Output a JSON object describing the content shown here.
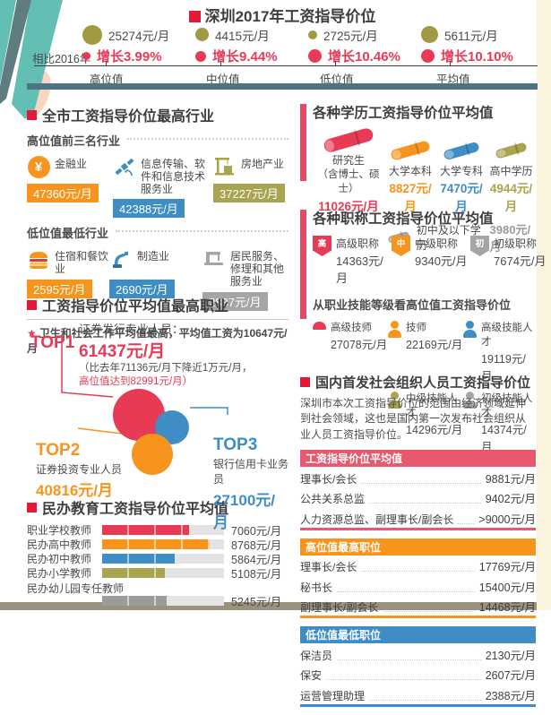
{
  "palette": {
    "bullet_red": "#e31937",
    "crimson": "#e73b55",
    "orange": "#f7941e",
    "blue": "#3e8dc5",
    "olive": "#a8a44f",
    "olive_circle": "#a29a43",
    "gray": "#a5a5a5",
    "dark_text": "#4b4b4d",
    "slate_rule": "#4d7480",
    "teal_corner": "#63bfb4",
    "slate_corner": "#5f7c80",
    "peach_corner": "#f7d7c2",
    "cream_strip": "#faf4df",
    "bottom_bar": "#99927f",
    "track_gray": "#e4e4e4",
    "section_bar_red": "#e84a63"
  },
  "header": {
    "title": "深圳2017年工资指导价位",
    "compare_label": "相比2016年",
    "circle_color": "#a29a43",
    "stats": [
      {
        "value": "25274元/月",
        "growth": "增长3.99%",
        "label": "高位值"
      },
      {
        "value": "4415元/月",
        "growth": "增长9.44%",
        "label": "中位值"
      },
      {
        "value": "2725元/月",
        "growth": "增长10.46%",
        "label": "低位值"
      },
      {
        "value": "5611元/月",
        "growth": "增长10.10%",
        "label": "平均值"
      }
    ]
  },
  "industry": {
    "title": "全市工资指导价位最高行业",
    "high_label": "高位值前三名行业",
    "high_items": [
      {
        "name": "金融业",
        "value": "47360元/月",
        "color": "#f7941e",
        "icon": "yuan-coin-icon",
        "icon_char": "¥"
      },
      {
        "name": "信息传输、软件和信息技术服务业",
        "value": "42388元/月",
        "color": "#3e8dc5",
        "icon": "satellite-icon"
      },
      {
        "name": "房地产业",
        "value": "37227元/月",
        "color": "#a8a44f",
        "icon": "crane-building-icon"
      }
    ],
    "low_label": "低位值最低行业",
    "low_items": [
      {
        "name": "住宿和餐饮业",
        "value": "2595元/月",
        "color": "#f7941e",
        "icon": "burger-icon"
      },
      {
        "name": "制造业",
        "value": "2690元/月",
        "color": "#3e8dc5",
        "icon": "robot-arm-icon"
      },
      {
        "name": "居民服务、修理和其他服务业",
        "value": "2837元/月",
        "color": "#a5a5a5",
        "icon": "sewing-machine-icon"
      }
    ],
    "note_star": "★",
    "note": "卫生和社会工作平均值最高，平均值工资为10647元/月"
  },
  "top_jobs": {
    "title": "工资指导价位平均值最高职业",
    "top1": {
      "rank": "TOP1",
      "name": "证券发行专业人员：",
      "value": "61437元/月",
      "note_line1": "（比去年71136元/月下降近1万元/月，",
      "note_line2": "高位值达到82991元/月）",
      "color": "#e73b55"
    },
    "top2": {
      "rank": "TOP2",
      "name": "证券投资专业人员",
      "value": "40816元/月",
      "color": "#f7941e"
    },
    "top3": {
      "rank": "TOP3",
      "name": "银行信用卡业务员",
      "value": "27100元/月",
      "color": "#3e8dc5"
    }
  },
  "education": {
    "title": "民办教育工资指导价位平均值"
  },
  "degrees": {
    "title": "各种学历工资指导价位平均值",
    "items": [
      {
        "name": "研究生",
        "name2": "（含博士、硕士）",
        "value": "11026元/月",
        "color": "#e73b55"
      },
      {
        "name": "大学本科",
        "value": "8827元/月",
        "color": "#f7941e"
      },
      {
        "name": "大学专科",
        "value": "7470元/月",
        "color": "#3e8dc5"
      },
      {
        "name": "高中学历",
        "value": "4944元/月",
        "color": "#a8a44f"
      }
    ],
    "extra": {
      "name": "初中及以下学历",
      "value": "3980元/月",
      "color": "#9b9b9b"
    }
  },
  "ranks": {
    "title": "各种职称工资指导价位平均值",
    "shields": [
      {
        "badge": "高",
        "name": "高级职称",
        "value": "14363元/月",
        "color": "#e73b55"
      },
      {
        "badge": "中",
        "name": "中级职称",
        "value": "9340元/月",
        "color": "#f7941e"
      },
      {
        "badge": "初",
        "name": "初级职称",
        "value": "7674元/月",
        "color": "#a5a5a5"
      }
    ],
    "skills_label": "从职业技能等级看高位值工资指导价位",
    "skills": [
      {
        "name": "高级技师",
        "value": "27078元/月",
        "color": "#e73b55"
      },
      {
        "name": "技师",
        "value": "22169元/月",
        "color": "#f7941e"
      },
      {
        "name": "高级技能人才",
        "value": "19119元/月",
        "color": "#3e8dc5"
      },
      {
        "name": "中级技能人才",
        "value": "14296元/月",
        "color": "#a8a44f"
      },
      {
        "name": "初级技能人才",
        "value": "14374元/月",
        "color": "#a5a5a5"
      }
    ]
  },
  "social": {
    "title": "国内首发社会组织人员工资指导价位",
    "intro": "深圳市本次工资指导价位的范围由经济领域延伸到社会领域，这也是国内第一次发布社会组织从业人员工资指导价位。",
    "tables": [
      {
        "header": "工资指导价位平均值",
        "color": "#e8586e",
        "rows": [
          {
            "name": "理事长/会长",
            "value": "9881元/月"
          },
          {
            "name": "公共关系总监",
            "value": "9402元/月"
          },
          {
            "name": "人力资源总监、副理事长/副会长",
            "value": ">9000元/月"
          }
        ]
      },
      {
        "header": "高位值最高职位",
        "color": "#f7941e",
        "rows": [
          {
            "name": "理事长/会长",
            "value": "17769元/月"
          },
          {
            "name": "秘书长",
            "value": "15400元/月"
          },
          {
            "name": "副理事长/副会长",
            "value": "14468元/月"
          }
        ]
      },
      {
        "header": "低位值最低职位",
        "color": "#3e8dc5",
        "rows": [
          {
            "name": "保洁员",
            "value": "2130元/月"
          },
          {
            "name": "保安",
            "value": "2607元/月"
          },
          {
            "name": "运营管理助理",
            "value": "2388元/月"
          }
        ]
      }
    ]
  },
  "chart_data": [
    {
      "type": "table",
      "title": "深圳2017年工资指导价位",
      "categories": [
        "高位值",
        "中位值",
        "低位值",
        "平均值"
      ],
      "series": [
        {
          "name": "2017年价位(元/月)",
          "values": [
            25274,
            4415,
            2725,
            5611
          ]
        },
        {
          "name": "相比2016年增长(%)",
          "values": [
            3.99,
            9.44,
            10.46,
            10.1
          ]
        }
      ]
    },
    {
      "type": "table",
      "title": "全市工资指导价位最高/最低行业(元/月)",
      "groups": [
        {
          "name": "高位值前三名行业",
          "rows": [
            [
              "金融业",
              47360
            ],
            [
              "信息传输、软件和信息技术服务业",
              42388
            ],
            [
              "房地产业",
              37227
            ]
          ]
        },
        {
          "name": "低位值最低行业",
          "rows": [
            [
              "住宿和餐饮业",
              2595
            ],
            [
              "制造业",
              2690
            ],
            [
              "居民服务、修理和其他服务业",
              2837
            ]
          ]
        }
      ],
      "note": "卫生和社会工作平均值最高，平均值工资为10647元/月"
    },
    {
      "type": "bubble",
      "title": "工资指导价位平均值最高职业(元/月)",
      "points": [
        {
          "label": "证券发行专业人员",
          "value": 61437
        },
        {
          "label": "证券投资专业人员",
          "value": 40816
        },
        {
          "label": "银行信用卡业务员",
          "value": 27100
        }
      ],
      "annotation": "证券发行专业人员比去年71136元/月下降近1万元/月，高位值达到82991元/月"
    },
    {
      "type": "bar",
      "title": "民办教育工资指导价位平均值",
      "categories": [
        "职业学校教师",
        "民办高中教师",
        "民办初中教师",
        "民办小学教师",
        "民办幼儿园专任教师"
      ],
      "values": [
        7060,
        8768,
        5864,
        5108,
        5245
      ],
      "unit": "元/月",
      "colors": [
        "#e73b55",
        "#f7941e",
        "#3e8dc5",
        "#a8a44f",
        "#9b9b9b"
      ],
      "xlim": [
        0,
        9900
      ],
      "wide_label_index": 4,
      "xlabel": "",
      "ylabel": ""
    },
    {
      "type": "table",
      "title": "各种学历工资指导价位平均值(元/月)",
      "rows": [
        [
          "研究生（含博士、硕士）",
          11026
        ],
        [
          "大学本科",
          8827
        ],
        [
          "大学专科",
          7470
        ],
        [
          "高中学历",
          4944
        ],
        [
          "初中及以下学历",
          3980
        ]
      ]
    },
    {
      "type": "table",
      "title": "各种职称工资指导价位平均值(元/月)",
      "rows": [
        [
          "高级职称",
          14363
        ],
        [
          "中级职称",
          9340
        ],
        [
          "初级职称",
          7674
        ]
      ]
    },
    {
      "type": "table",
      "title": "从职业技能等级看高位值工资指导价位(元/月)",
      "rows": [
        [
          "高级技师",
          27078
        ],
        [
          "技师",
          22169
        ],
        [
          "高级技能人才",
          19119
        ],
        [
          "中级技能人才",
          14296
        ],
        [
          "初级技能人才",
          14374
        ]
      ]
    },
    {
      "type": "table",
      "title": "社会组织工资指导价位平均值(元/月)",
      "rows": [
        [
          "理事长/会长",
          9881
        ],
        [
          "公共关系总监",
          9402
        ],
        [
          "人力资源总监、副理事长/副会长",
          ">9000"
        ]
      ]
    },
    {
      "type": "table",
      "title": "社会组织高位值最高职位(元/月)",
      "rows": [
        [
          "理事长/会长",
          17769
        ],
        [
          "秘书长",
          15400
        ],
        [
          "副理事长/副会长",
          14468
        ]
      ]
    },
    {
      "type": "table",
      "title": "社会组织低位值最低职位(元/月)",
      "rows": [
        [
          "保洁员",
          2130
        ],
        [
          "保安",
          2607
        ],
        [
          "运营管理助理",
          2388
        ]
      ]
    }
  ]
}
